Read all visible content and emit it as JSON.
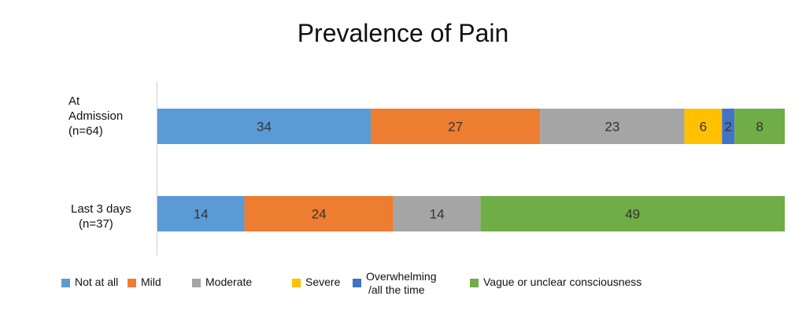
{
  "chart_data": {
    "type": "bar",
    "orientation": "horizontal",
    "stacked": true,
    "title": "Prevalence of Pain",
    "categories": [
      {
        "lines": [
          "At",
          "Admission",
          "(n=64)"
        ]
      },
      {
        "lines": [
          "Last 3 days",
          "(n=37)"
        ]
      }
    ],
    "series": [
      {
        "name": "Not at all",
        "color": "#5b9bd5",
        "values": [
          34,
          14
        ]
      },
      {
        "name": "Mild",
        "color": "#ed7d31",
        "values": [
          27,
          24
        ]
      },
      {
        "name": "Moderate",
        "color": "#a5a5a5",
        "values": [
          23,
          14
        ]
      },
      {
        "name": "Severe",
        "color": "#ffc000",
        "values": [
          6,
          null
        ]
      },
      {
        "name": "Overwhelming /all the time",
        "legend_lines": [
          "Overwhelming",
          "/all the time"
        ],
        "color": "#4472c4",
        "values": [
          2,
          null
        ]
      },
      {
        "name": "Vague or unclear consciousness",
        "color": "#70ad47",
        "values": [
          8,
          49
        ]
      }
    ],
    "normalized": true,
    "grid": false,
    "legend_position": "bottom"
  }
}
